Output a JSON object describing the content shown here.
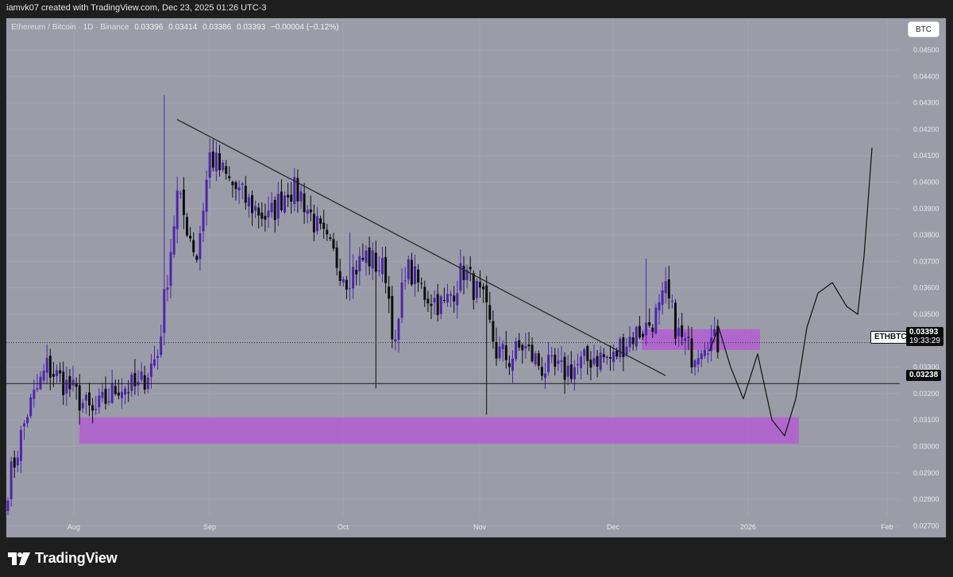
{
  "header": {
    "credit": "iamvk07 created with TradingView.com, Dec 23, 2025 01:26 UTC-3"
  },
  "legend": {
    "symbol": "Ethereum / Bitcoin · 1D · Binance",
    "open": "0.03396",
    "high": "0.03414",
    "low": "0.03386",
    "close": "0.03393",
    "change": "−0.00004 (−0.12%)"
  },
  "currency_button": "BTC",
  "price_axis": {
    "ticks": [
      "0.04500",
      "0.04400",
      "0.04300",
      "0.04200",
      "0.04100",
      "0.04000",
      "0.03900",
      "0.03800",
      "0.03700",
      "0.03600",
      "0.03500",
      "0.03400",
      "0.03300",
      "0.03200",
      "0.03100",
      "0.03000",
      "0.02900",
      "0.02800",
      "0.02700"
    ],
    "symbol_label": "ETHBTC",
    "last_price": "0.03393",
    "countdown": "19:33:29",
    "level_price": "0.03238"
  },
  "time_axis": {
    "labels": [
      "Aug",
      "Sep",
      "Oct",
      "Nov",
      "Dec",
      "2026",
      "Feb"
    ]
  },
  "colors": {
    "background": "#9b9ca7",
    "bull_candle": "#4b27b0",
    "bear_candle": "#0e0e0e",
    "zone": "#b162d0",
    "line": "#222222"
  },
  "chart_data": {
    "type": "candlestick",
    "symbol": "Ethereum / Bitcoin · 1D · Binance",
    "ylim": [
      0.0265,
      0.0462
    ],
    "x_labels": [
      "Aug",
      "Sep",
      "Oct",
      "Nov",
      "Dec",
      "2026",
      "Feb"
    ],
    "anchor_closes": [
      [
        0,
        0.0285
      ],
      [
        6,
        0.0313
      ],
      [
        12,
        0.033
      ],
      [
        19,
        0.0322
      ],
      [
        26,
        0.0312
      ],
      [
        34,
        0.0323
      ],
      [
        40,
        0.0322
      ],
      [
        46,
        0.0335
      ],
      [
        52,
        0.0395
      ],
      [
        58,
        0.0372
      ],
      [
        62,
        0.041
      ],
      [
        68,
        0.04
      ],
      [
        74,
        0.0392
      ],
      [
        80,
        0.0386
      ],
      [
        86,
        0.0398
      ],
      [
        90,
        0.0395
      ],
      [
        96,
        0.038
      ],
      [
        104,
        0.0364
      ],
      [
        110,
        0.0372
      ],
      [
        116,
        0.0366
      ],
      [
        119,
        0.0336
      ],
      [
        122,
        0.0368
      ],
      [
        128,
        0.0358
      ],
      [
        134,
        0.0353
      ],
      [
        140,
        0.0367
      ],
      [
        146,
        0.0354
      ],
      [
        150,
        0.0336
      ],
      [
        154,
        0.0333
      ],
      [
        158,
        0.0338
      ],
      [
        164,
        0.033
      ],
      [
        170,
        0.0328
      ],
      [
        176,
        0.0331
      ],
      [
        180,
        0.0334
      ],
      [
        186,
        0.0333
      ],
      [
        188,
        0.0338
      ],
      [
        192,
        0.0342
      ],
      [
        196,
        0.0345
      ],
      [
        200,
        0.0351
      ],
      [
        202,
        0.0358
      ],
      [
        206,
        0.0342
      ],
      [
        210,
        0.0335
      ],
      [
        214,
        0.0341
      ],
      [
        218,
        0.0339
      ]
    ],
    "trendline": [
      [
        0.04237
      ],
      [
        0.03268
      ]
    ],
    "horizontal_level": "0.03238",
    "zones": [
      {
        "name": "lower demand zone",
        "top": 0.0311,
        "bottom": 0.0301
      },
      {
        "name": "upper zone",
        "top": 0.03443,
        "bottom": 0.03365
      }
    ],
    "projection": [
      [
        0.0336
      ],
      [
        0.0345
      ],
      [
        0.033
      ],
      [
        0.0318
      ],
      [
        0.0335
      ],
      [
        0.031
      ],
      [
        0.0304
      ],
      [
        0.0318
      ],
      [
        0.0345
      ],
      [
        0.0358
      ],
      [
        0.0362
      ],
      [
        0.0353
      ],
      [
        0.035
      ],
      [
        0.0372
      ],
      [
        0.0413
      ]
    ]
  }
}
